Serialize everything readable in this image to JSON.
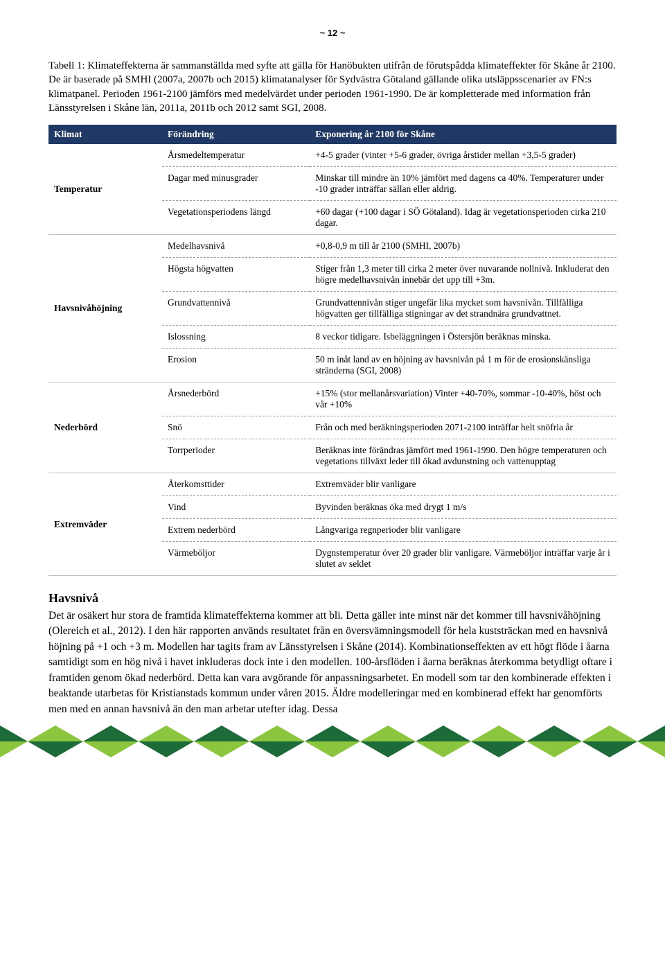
{
  "page_number": "~ 12 ~",
  "intro": "Tabell 1: Klimateffekterna är sammanställda med syfte att gälla för Hanöbukten utifrån de förutspådda klimateffekter för Skåne år 2100. De är baserade på SMHI (2007a, 2007b och 2015) klimatanalyser för Sydvästra Götaland gällande olika utsläppsscenarier av FN:s klimatpanel. Perioden 1961-2100 jämförs med medelvärdet under perioden 1961-1990. De är kompletterade med information från Länsstyrelsen i Skåne län, 2011a, 2011b och 2012 samt SGI, 2008.",
  "headers": [
    "Klimat",
    "Förändring",
    "Exponering år 2100 för Skåne"
  ],
  "groups": [
    {
      "category": "Temperatur",
      "rows": [
        {
          "param": "Årsmedeltemperatur",
          "expo": "+4-5 grader (vinter +5-6 grader, övriga årstider mellan +3,5-5 grader)"
        },
        {
          "param": "Dagar med minusgrader",
          "expo": "Minskar till mindre än 10% jämfört med dagens ca 40%. Temperaturer under -10 grader inträffar sällan eller aldrig."
        },
        {
          "param": "Vegetationsperiodens längd",
          "expo": "+60 dagar (+100 dagar i SÖ Götaland). Idag är vegetationsperioden cirka 210 dagar."
        }
      ]
    },
    {
      "category": "Havsnivåhöjning",
      "rows": [
        {
          "param": "Medelhavsnivå",
          "expo": "+0,8-0,9 m till år 2100 (SMHI, 2007b)"
        },
        {
          "param": "Högsta högvatten",
          "expo": "Stiger från 1,3 meter till cirka 2 meter över nuvarande nollnivå. Inkluderat den högre medelhavsnivån innebär det upp till +3m."
        },
        {
          "param": "Grundvattennivå",
          "expo": "Grundvattennivån stiger ungefär lika mycket som havsnivån. Tillfälliga högvatten ger tillfälliga stigningar av det strandnära grundvattnet."
        },
        {
          "param": "Islossning",
          "expo": "8 veckor tidigare. Isbeläggningen i Östersjön beräknas minska."
        },
        {
          "param": "Erosion",
          "expo": "50 m inåt land av en höjning av havsnivån på 1 m för de erosionskänsliga stränderna (SGI, 2008)"
        }
      ]
    },
    {
      "category": "Nederbörd",
      "rows": [
        {
          "param": "Årsnederbörd",
          "expo": "+15% (stor mellanårsvariation) Vinter +40-70%, sommar -10-40%, höst och vår +10%"
        },
        {
          "param": "Snö",
          "expo": "Från och med beräkningsperioden 2071-2100 inträffar helt snöfria år"
        },
        {
          "param": "Torrperioder",
          "expo": "Beräknas inte förändras jämfört med 1961-1990. Den högre temperaturen och vegetations tillväxt leder till ökad avdunstning och vattenupptag"
        }
      ]
    },
    {
      "category": "Extremväder",
      "rows": [
        {
          "param": "Återkomsttider",
          "expo": "Extremväder blir vanligare"
        },
        {
          "param": "Vind",
          "expo": "Byvinden beräknas öka med drygt 1 m/s"
        },
        {
          "param": "Extrem nederbörd",
          "expo": "Långvariga regnperioder blir vanligare"
        },
        {
          "param": "Värmeböljor",
          "expo": "Dygnstemperatur över 20 grader blir vanligare. Värmeböljor inträffar varje år i slutet av seklet"
        }
      ]
    }
  ],
  "section_title": "Havsnivå",
  "body": "Det är osäkert hur stora de framtida klimateffekterna kommer att bli. Detta gäller inte minst när det kommer till havsnivåhöjning (Olereich et al., 2012). I den här rapporten används resultatet från en översvämningsmodell för hela kuststräckan med en havsnivå höjning på +1 och +3 m. Modellen har tagits fram av Länsstyrelsen i Skåne (2014). Kombinationseffekten av ett högt flöde i åarna samtidigt som en hög nivå i havet inkluderas dock inte i den modellen. 100-årsflöden i åarna beräknas återkomma betydligt oftare i framtiden genom ökad nederbörd. Detta kan vara avgörande för anpassningsarbetet. En modell som tar den kombinerade effekten i beaktande utarbetas för Kristianstads kommun under våren 2015. Äldre modelleringar med en kombinerad effekt har genomförts men med en annan havsnivå än den man arbetar utefter idag. Dessa",
  "pattern": {
    "dark_green": "#1e6b3a",
    "light_green": "#8cc63f",
    "blue": "#1f3864"
  }
}
